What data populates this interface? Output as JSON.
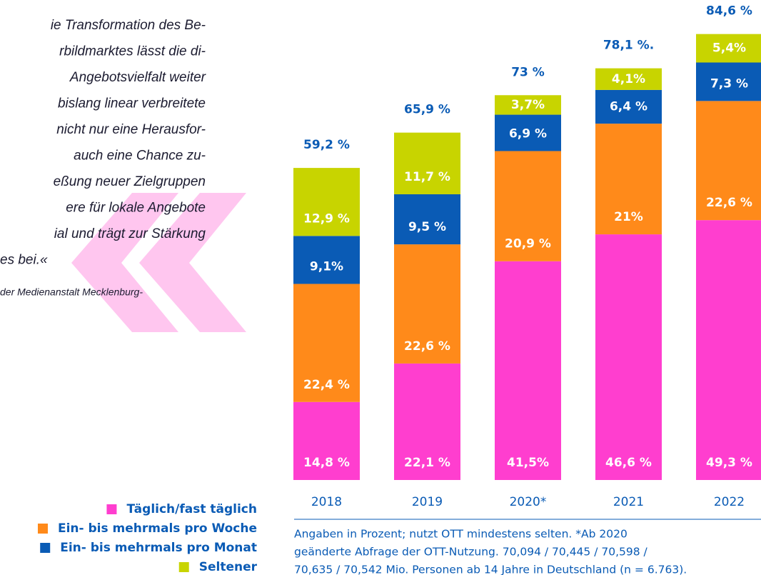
{
  "chart_data": {
    "type": "stacked_bar",
    "quote_lines": [
      "ie Transformation des Be-",
      "rbildmarktes lässt die di-",
      "Angebotsvielfalt weiter",
      "bislang linear verbreitete",
      "nicht nur eine Herausfor-",
      "auch eine Chance zu-",
      "eßung neuer Zielgruppen",
      "ere für lokale Angebote",
      "ial und trägt zur Stärkung",
      "es bei.«"
    ],
    "quote_source": "der Medienanstalt Mecklenburg-",
    "categories": [
      "2018",
      "2019",
      "2020*",
      "2021",
      "2022"
    ],
    "series": [
      {
        "name": "Täglich/fast täglich",
        "color": "#ff3ecf",
        "values": [
          14.8,
          22.1,
          41.5,
          46.6,
          49.3
        ],
        "value_labels": [
          "14,8 %",
          "22,1 %",
          "41,5%",
          "46,6 %",
          "49,3 %"
        ]
      },
      {
        "name": "Ein- bis mehrmals pro Woche",
        "color": "#ff8a1a",
        "values": [
          22.4,
          22.6,
          20.9,
          21,
          22.6
        ],
        "value_labels": [
          "22,4 %",
          "22,6 %",
          "20,9 %",
          "21%",
          "22,6 %"
        ]
      },
      {
        "name": "Ein- bis mehrmals pro Monat",
        "color": "#0a5bb5",
        "values": [
          9.1,
          9.5,
          6.9,
          6.4,
          7.3
        ],
        "value_labels": [
          "9,1%",
          "9,5 %",
          "6,9 %",
          "6,4 %",
          "7,3 %"
        ]
      },
      {
        "name": "Seltener",
        "color": "#c8d400",
        "values": [
          12.9,
          11.7,
          3.7,
          4.1,
          5.4
        ],
        "value_labels": [
          "12,9 %",
          "11,7 %",
          "3,7%",
          "4,1%",
          "5,4%"
        ]
      }
    ],
    "totals": {
      "values": [
        59.2,
        65.9,
        73,
        78.1,
        84.6
      ],
      "value_labels": [
        "59,2 %",
        "65,9 %",
        "73 %",
        "78,1 %.",
        "84,6 %"
      ]
    },
    "note_lines": [
      "Angaben in Prozent; nutzt OTT mindestens selten. *Ab 2020",
      "geänderte Abfrage der OTT-Nutzung. 70,094 / 70,445 / 70,598 /",
      "70,635 / 70,542 Mio. Personen ab 14 Jahre in Deutschland (n = 6.763)."
    ]
  }
}
